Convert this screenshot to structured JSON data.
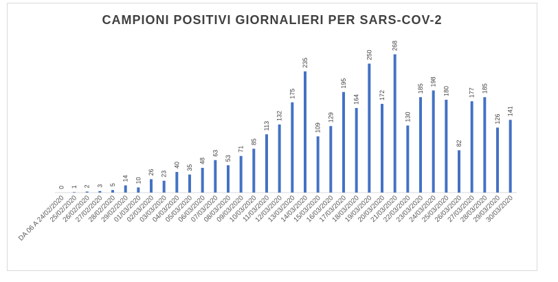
{
  "chart_data": {
    "type": "bar",
    "title": "CAMPIONI POSITIVI GIORNALIERI PER SARS-COV-2",
    "xlabel": "",
    "ylabel": "",
    "ylim": [
      0,
      280
    ],
    "grid": false,
    "bar_color": "#4472c4",
    "categories": [
      "DA 06 A 24/02/2020",
      "25/02/2020",
      "26/02/2020",
      "27/02/2020",
      "28/02/2020",
      "29/02/2020",
      "01/03/2020",
      "02/03/2020",
      "03/03/2020",
      "04/03/2020",
      "05/03/2020",
      "06/03/2020",
      "07/03/2020",
      "08/03/2020",
      "09/03/2020",
      "10/03/2020",
      "11/03/2020",
      "12/03/2020",
      "13/03/2020",
      "14/03/2020",
      "15/03/2020",
      "16/03/2020",
      "17/03/2020",
      "18/03/2020",
      "19/03/2020",
      "20/03/2020",
      "21/03/2020",
      "22/03/2020",
      "23/03/2020",
      "24/03/2020",
      "25/03/2020",
      "26/03/2020",
      "27/03/2020",
      "28/03/2020",
      "29/03/2020",
      "30/03/2020"
    ],
    "values": [
      0,
      1,
      2,
      3,
      5,
      14,
      10,
      26,
      23,
      40,
      35,
      48,
      63,
      53,
      71,
      85,
      113,
      132,
      175,
      235,
      109,
      129,
      195,
      164,
      250,
      172,
      268,
      130,
      185,
      198,
      180,
      82,
      177,
      185,
      126,
      141
    ]
  }
}
